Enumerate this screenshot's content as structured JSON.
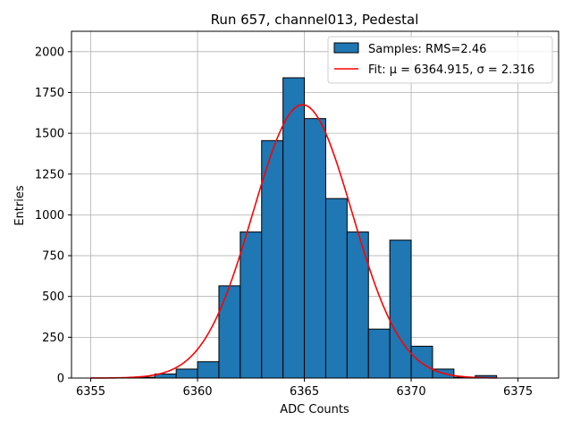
{
  "chart_data": {
    "type": "bar",
    "title": "Run 657, channel013, Pedestal",
    "xlabel": "ADC Counts",
    "ylabel": "Entries",
    "xlim": [
      6354.1,
      6376.9
    ],
    "ylim": [
      0,
      2125
    ],
    "xticks": [
      6355,
      6360,
      6365,
      6370,
      6375
    ],
    "yticks": [
      0,
      250,
      500,
      750,
      1000,
      1250,
      1500,
      1750,
      2000
    ],
    "grid": true,
    "legend_position": "top-right",
    "colors": {
      "bars": "#1f77b4",
      "bar_edge": "#000000",
      "fit": "#ff0000"
    },
    "series": [
      {
        "name": "Samples: RMS=2.46",
        "type": "histogram",
        "bin_width": 1,
        "bins": [
          {
            "x": 6355,
            "value": 0
          },
          {
            "x": 6356,
            "value": 0
          },
          {
            "x": 6357,
            "value": 5
          },
          {
            "x": 6358,
            "value": 25
          },
          {
            "x": 6359,
            "value": 55
          },
          {
            "x": 6360,
            "value": 100
          },
          {
            "x": 6361,
            "value": 565
          },
          {
            "x": 6362,
            "value": 895
          },
          {
            "x": 6363,
            "value": 1455
          },
          {
            "x": 6364,
            "value": 1840
          },
          {
            "x": 6365,
            "value": 1590
          },
          {
            "x": 6366,
            "value": 1100
          },
          {
            "x": 6367,
            "value": 895
          },
          {
            "x": 6368,
            "value": 300
          },
          {
            "x": 6369,
            "value": 845
          },
          {
            "x": 6370,
            "value": 195
          },
          {
            "x": 6371,
            "value": 55
          },
          {
            "x": 6372,
            "value": 5
          },
          {
            "x": 6373,
            "value": 15
          },
          {
            "x": 6374,
            "value": 0
          },
          {
            "x": 6375,
            "value": 0
          }
        ]
      },
      {
        "name": "Fit: μ = 6364.915, σ = 2.316",
        "type": "gaussian",
        "mu": 6364.915,
        "sigma": 2.316,
        "amplitude": 1675,
        "x_range": [
          6355,
          6374
        ]
      }
    ]
  }
}
